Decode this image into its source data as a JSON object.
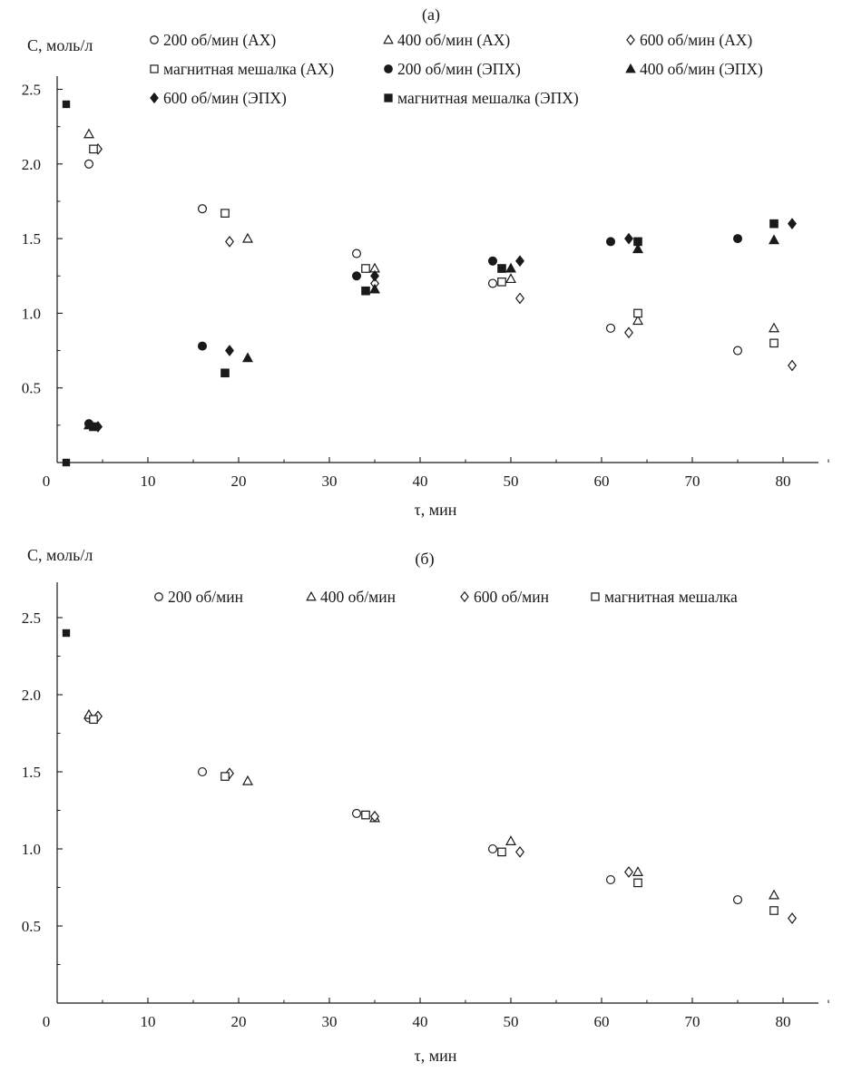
{
  "chart_data": [
    {
      "type": "scatter",
      "panel_label": "(а)",
      "xlabel": "τ, мин",
      "ylabel": "C, моль/л",
      "xlim": [
        0,
        85
      ],
      "ylim": [
        0,
        2.7
      ],
      "x_ticks": [
        0,
        10,
        20,
        30,
        40,
        50,
        60,
        70,
        80
      ],
      "y_ticks": [
        0.5,
        1.0,
        1.5,
        2.0,
        2.5
      ],
      "x_tick_labels": [
        "0",
        "10",
        "20",
        "30",
        "40",
        "50",
        "60",
        "70",
        "80"
      ],
      "y_tick_labels": [
        "0.5",
        "1.0",
        "1.5",
        "2.0",
        "2.5"
      ],
      "grid": false,
      "legend_position": "top",
      "series": [
        {
          "name": "200 об/мин (АХ)",
          "marker": "circle",
          "filled": false,
          "points": [
            [
              3.5,
              2.0
            ],
            [
              16,
              1.7
            ],
            [
              33,
              1.4
            ],
            [
              48,
              1.2
            ],
            [
              61,
              0.9
            ],
            [
              75,
              0.75
            ]
          ]
        },
        {
          "name": "400 об/мин (АХ)",
          "marker": "triangle",
          "filled": false,
          "points": [
            [
              3.5,
              2.2
            ],
            [
              21,
              1.5
            ],
            [
              35,
              1.3
            ],
            [
              50,
              1.23
            ],
            [
              64,
              0.95
            ],
            [
              79,
              0.9
            ]
          ]
        },
        {
          "name": "600 об/мин (АХ)",
          "marker": "diamond",
          "filled": false,
          "points": [
            [
              4.5,
              2.1
            ],
            [
              19,
              1.48
            ],
            [
              35,
              1.2
            ],
            [
              51,
              1.1
            ],
            [
              63,
              0.87
            ],
            [
              81,
              0.65
            ]
          ]
        },
        {
          "name": "магнитная мешалка (АХ)",
          "marker": "square",
          "filled": false,
          "points": [
            [
              4,
              2.1
            ],
            [
              18.5,
              1.67
            ],
            [
              34,
              1.3
            ],
            [
              49,
              1.21
            ],
            [
              64,
              1.0
            ],
            [
              79,
              0.8
            ]
          ]
        },
        {
          "name": "200 об/мин (ЭПХ)",
          "marker": "circle",
          "filled": true,
          "points": [
            [
              3.5,
              0.26
            ],
            [
              16,
              0.78
            ],
            [
              33,
              1.25
            ],
            [
              48,
              1.35
            ],
            [
              61,
              1.48
            ],
            [
              75,
              1.5
            ]
          ]
        },
        {
          "name": "400 об/мин (ЭПХ)",
          "marker": "triangle",
          "filled": true,
          "points": [
            [
              3.5,
              0.25
            ],
            [
              21,
              0.7
            ],
            [
              35,
              1.16
            ],
            [
              50,
              1.3
            ],
            [
              64,
              1.43
            ],
            [
              79,
              1.49
            ]
          ]
        },
        {
          "name": "600 об/мин (ЭПХ)",
          "marker": "diamond",
          "filled": true,
          "points": [
            [
              4.5,
              0.24
            ],
            [
              19,
              0.75
            ],
            [
              35,
              1.25
            ],
            [
              51,
              1.35
            ],
            [
              63,
              1.5
            ],
            [
              81,
              1.6
            ]
          ]
        },
        {
          "name": "магнитная мешалка (ЭПХ)",
          "marker": "square",
          "filled": true,
          "points": [
            [
              4,
              0.24
            ],
            [
              18.5,
              0.6
            ],
            [
              34,
              1.15
            ],
            [
              49,
              1.3
            ],
            [
              64,
              1.48
            ],
            [
              79,
              1.6
            ]
          ]
        }
      ],
      "extra_points": [
        {
          "marker": "square",
          "filled": true,
          "points": [
            [
              1,
              2.4
            ],
            [
              1,
              0.0
            ]
          ]
        }
      ]
    },
    {
      "type": "scatter",
      "panel_label": "(б)",
      "xlabel": "τ, мин",
      "ylabel": "C, моль/л",
      "xlim": [
        0,
        85
      ],
      "ylim": [
        0,
        2.7
      ],
      "x_ticks": [
        0,
        10,
        20,
        30,
        40,
        50,
        60,
        70,
        80
      ],
      "y_ticks": [
        0.5,
        1.0,
        1.5,
        2.0,
        2.5
      ],
      "x_tick_labels": [
        "0",
        "10",
        "20",
        "30",
        "40",
        "50",
        "60",
        "70",
        "80"
      ],
      "y_tick_labels": [
        "0.5",
        "1.0",
        "1.5",
        "2.0",
        "2.5"
      ],
      "grid": false,
      "legend_position": "top",
      "series": [
        {
          "name": "200 об/мин",
          "marker": "circle",
          "filled": false,
          "points": [
            [
              3.5,
              1.85
            ],
            [
              16,
              1.5
            ],
            [
              33,
              1.23
            ],
            [
              48,
              1.0
            ],
            [
              61,
              0.8
            ],
            [
              75,
              0.67
            ]
          ]
        },
        {
          "name": "400 об/мин",
          "marker": "triangle",
          "filled": false,
          "points": [
            [
              3.5,
              1.87
            ],
            [
              21,
              1.44
            ],
            [
              35,
              1.2
            ],
            [
              50,
              1.05
            ],
            [
              64,
              0.85
            ],
            [
              79,
              0.7
            ]
          ]
        },
        {
          "name": "600 об/мин",
          "marker": "diamond",
          "filled": false,
          "points": [
            [
              4.5,
              1.86
            ],
            [
              19,
              1.49
            ],
            [
              35,
              1.21
            ],
            [
              51,
              0.98
            ],
            [
              63,
              0.85
            ],
            [
              81,
              0.55
            ]
          ]
        },
        {
          "name": "магнитная мешалка",
          "marker": "square",
          "filled": false,
          "points": [
            [
              4,
              1.84
            ],
            [
              18.5,
              1.47
            ],
            [
              34,
              1.22
            ],
            [
              49,
              0.98
            ],
            [
              64,
              0.78
            ],
            [
              79,
              0.6
            ]
          ]
        }
      ],
      "extra_points": [
        {
          "marker": "square",
          "filled": true,
          "points": [
            [
              1,
              2.4
            ]
          ]
        }
      ]
    }
  ]
}
